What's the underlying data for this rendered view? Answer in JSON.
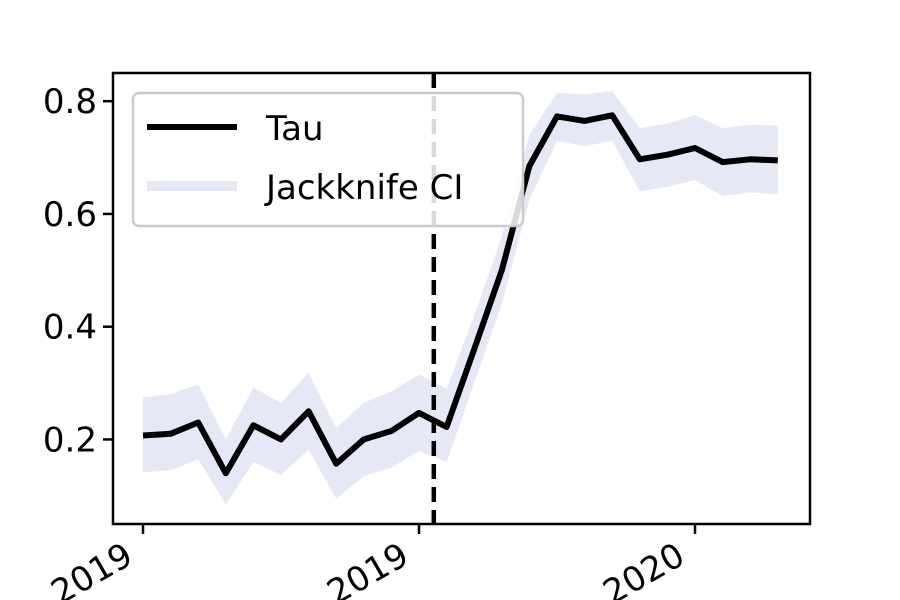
{
  "chart_data": {
    "type": "line",
    "title": "",
    "xlabel": "",
    "ylabel": "",
    "x_tick_labels": [
      "2019",
      "2019",
      "2020"
    ],
    "y_ticks": [
      0.2,
      0.4,
      0.6,
      0.8
    ],
    "y_tick_labels": [
      "0.2",
      "0.4",
      "0.6",
      "0.8"
    ],
    "ylim": [
      0.05,
      0.85
    ],
    "grid": false,
    "legend_position": "top-left",
    "vertical_reference_line": {
      "style": "dashed",
      "color": "#000000",
      "after_point_index": 10
    },
    "series": [
      {
        "name": "Tau",
        "color": "#000000",
        "values": [
          0.207,
          0.21,
          0.23,
          0.14,
          0.225,
          0.2,
          0.25,
          0.157,
          0.2,
          0.215,
          0.247,
          0.222,
          0.36,
          0.5,
          0.685,
          0.773,
          0.765,
          0.775,
          0.697,
          0.705,
          0.717,
          0.692,
          0.697,
          0.695
        ]
      },
      {
        "name": "Jackknife CI",
        "color": "#e6e8f5",
        "type": "band",
        "lower": [
          0.142,
          0.145,
          0.165,
          0.085,
          0.16,
          0.137,
          0.182,
          0.095,
          0.135,
          0.15,
          0.18,
          0.16,
          0.3,
          0.44,
          0.625,
          0.73,
          0.72,
          0.73,
          0.64,
          0.648,
          0.66,
          0.632,
          0.638,
          0.635
        ],
        "upper": [
          0.275,
          0.28,
          0.298,
          0.2,
          0.292,
          0.265,
          0.318,
          0.22,
          0.265,
          0.285,
          0.315,
          0.29,
          0.42,
          0.56,
          0.74,
          0.815,
          0.812,
          0.818,
          0.752,
          0.76,
          0.775,
          0.752,
          0.758,
          0.757
        ]
      }
    ]
  }
}
